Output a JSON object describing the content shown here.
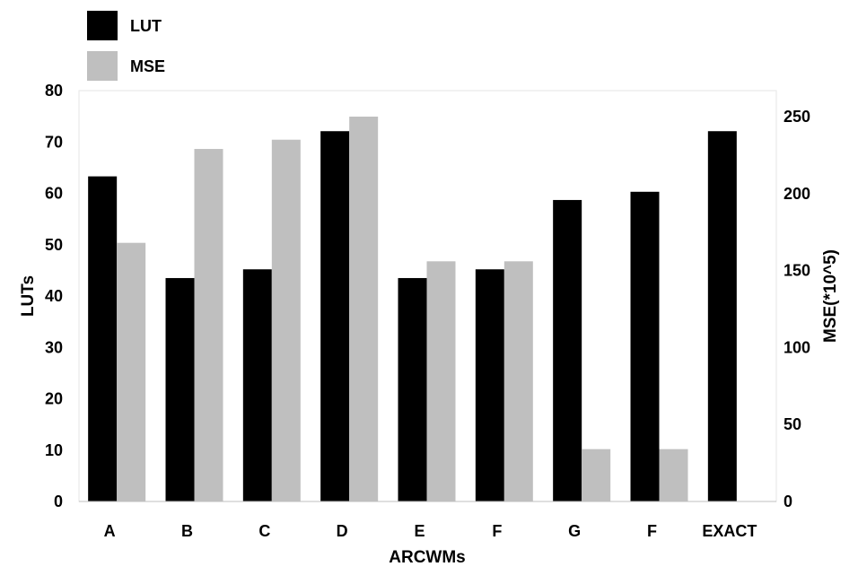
{
  "chart_data": {
    "type": "bar",
    "xlabel": "ARCWMs",
    "ylabel": "LUTs",
    "y2label": "MSE(*10^5)",
    "categories": [
      "A",
      "B",
      "C",
      "D",
      "E",
      "F",
      "G",
      "F",
      "EXACT"
    ],
    "ylim": [
      0,
      80
    ],
    "y2lim": [
      0,
      250
    ],
    "yticks": [
      0,
      10,
      20,
      30,
      40,
      50,
      60,
      70,
      80
    ],
    "y2ticks": [
      0,
      50,
      100,
      150,
      200,
      250
    ],
    "legend_position": "top-left",
    "grid": false,
    "series": [
      {
        "name": "LUT",
        "axis": "left",
        "color": "#000000",
        "values": [
          63.3,
          43.5,
          45.2,
          72.1,
          43.5,
          45.2,
          58.7,
          60.3,
          72.1
        ]
      },
      {
        "name": "MSE",
        "axis": "right",
        "color": "#bfbfbf",
        "values": [
          168,
          229,
          235,
          250,
          156,
          156,
          34,
          34,
          null
        ]
      }
    ]
  }
}
